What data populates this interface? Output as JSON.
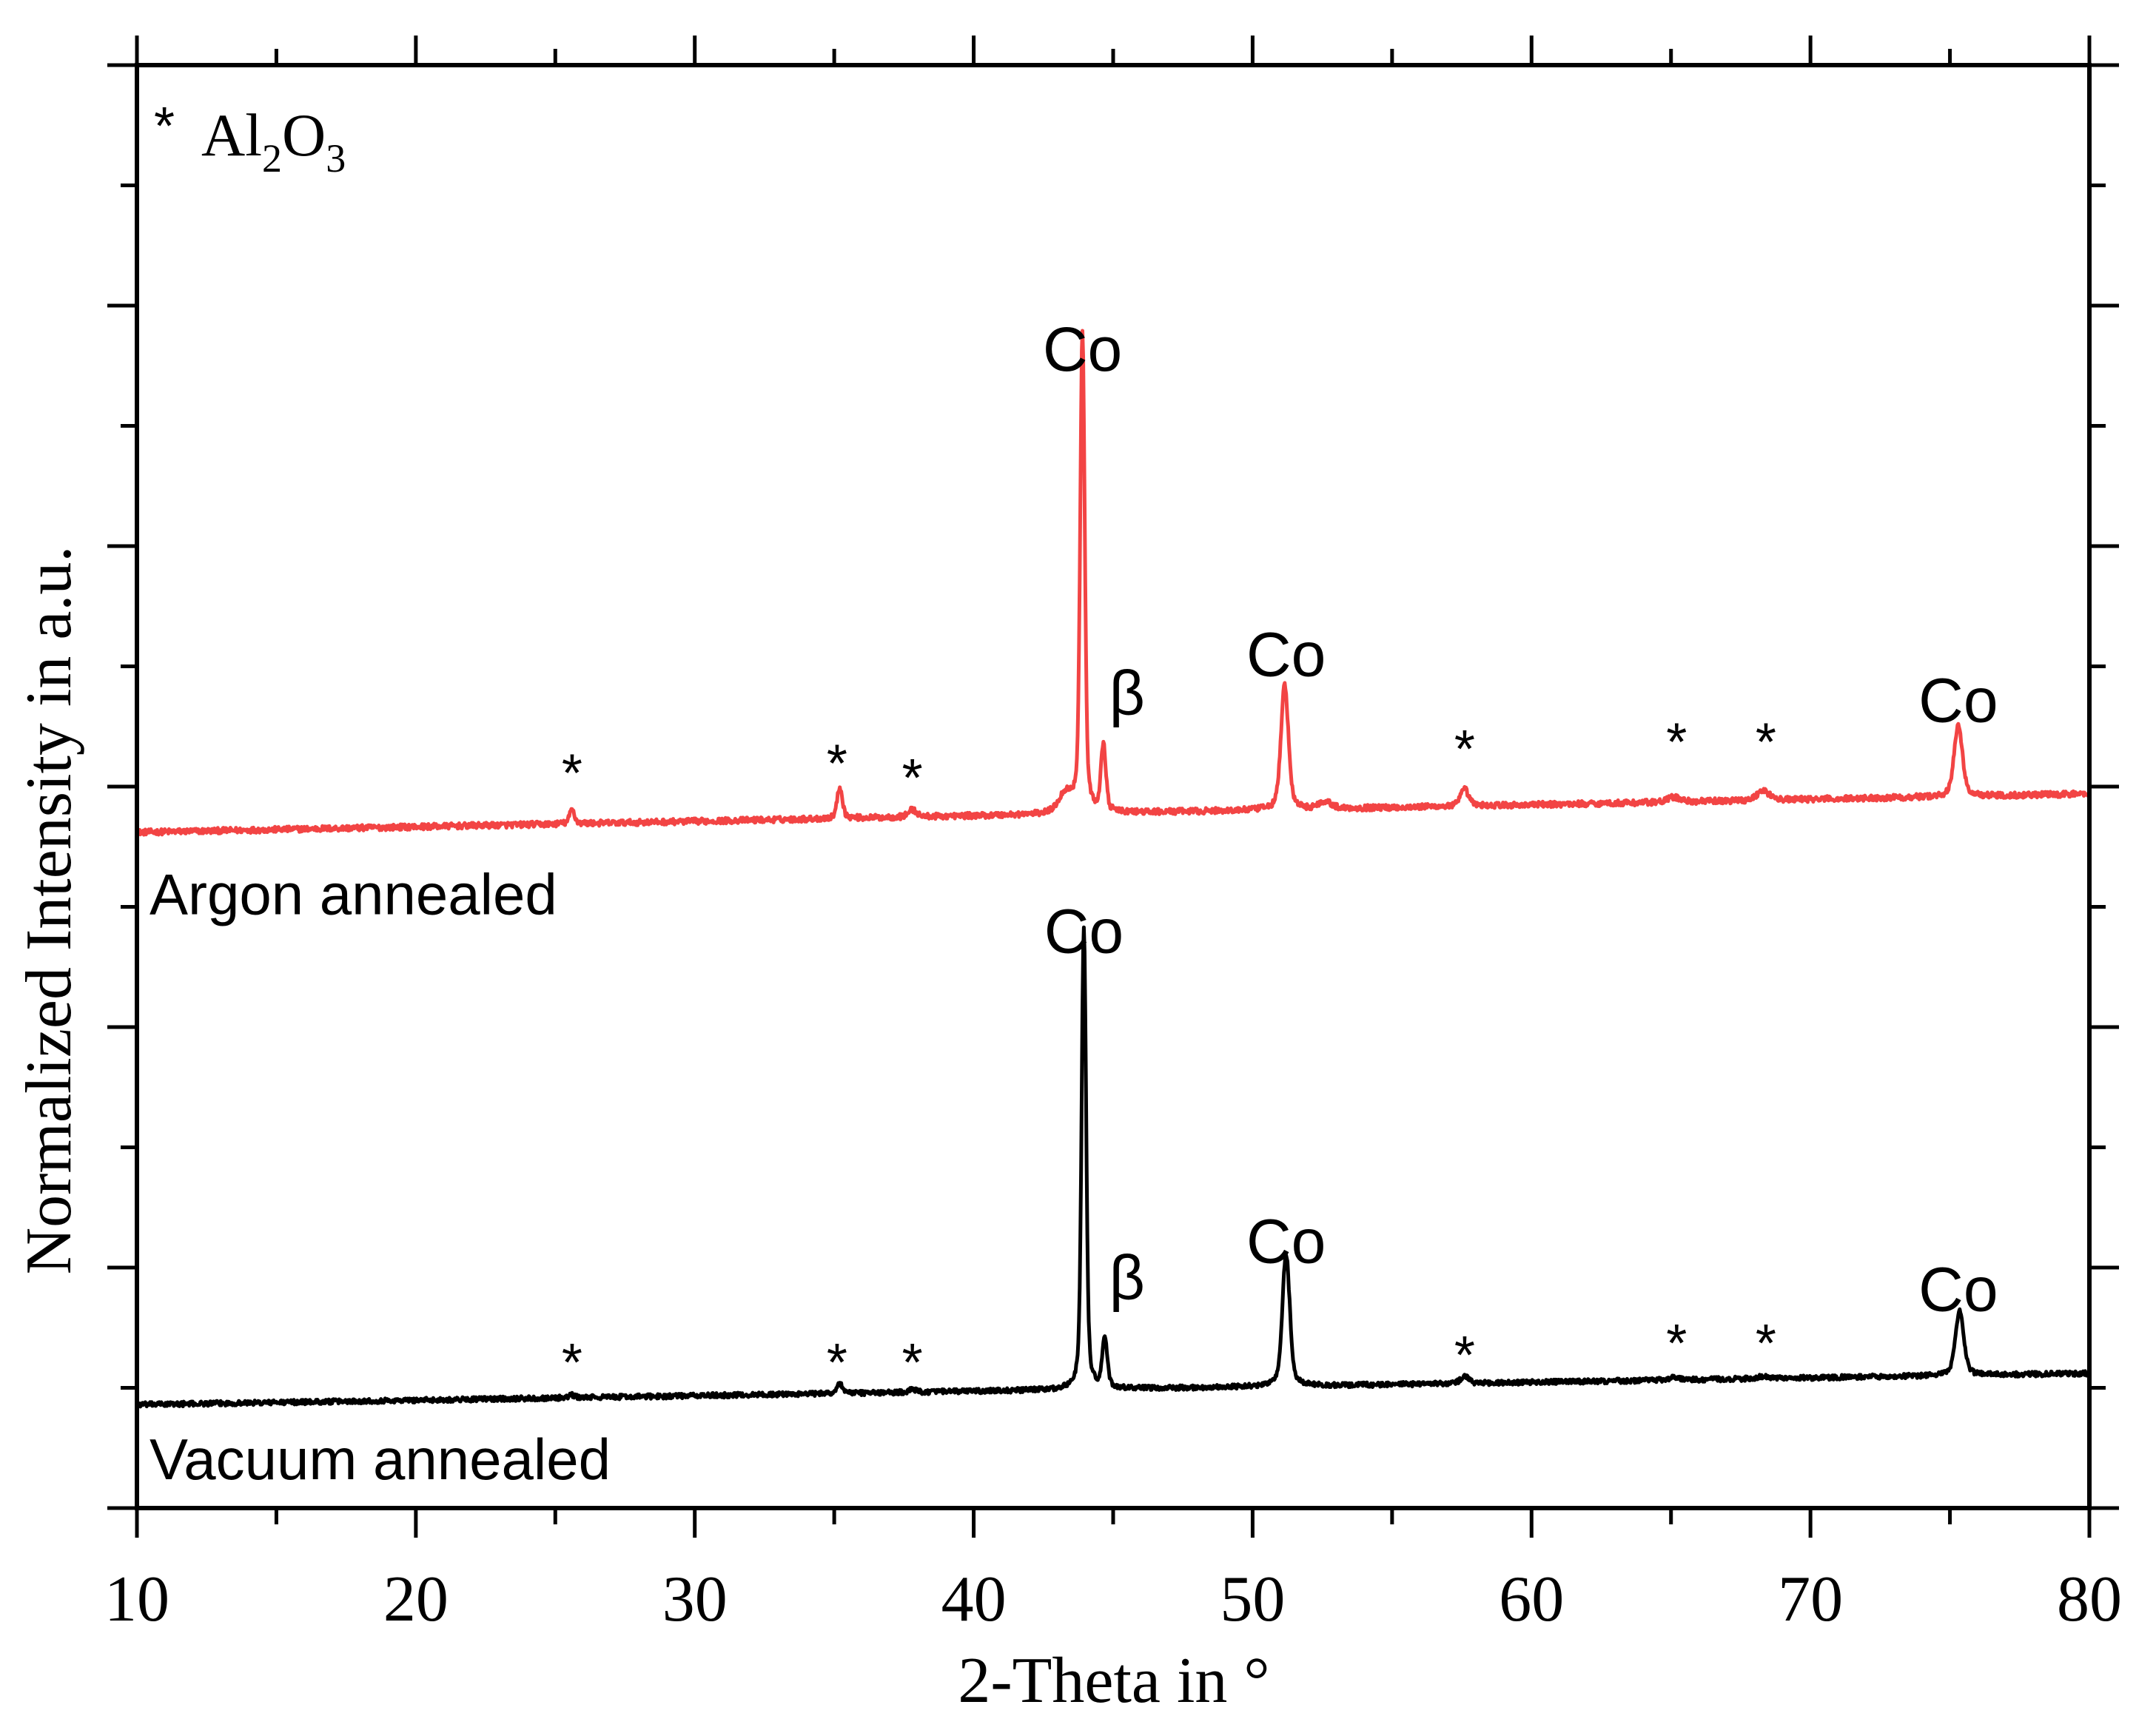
{
  "chart_data": {
    "type": "line",
    "xlabel": "2-Theta in °",
    "ylabel": "Normalized Intensity in a.u.",
    "xlim": [
      10,
      80
    ],
    "ylim": [
      0,
      6
    ],
    "x_ticks": [
      "10",
      "20",
      "30",
      "40",
      "50",
      "60",
      "70",
      "80"
    ],
    "grid": false,
    "legend": {
      "marker": "*",
      "base": "Al",
      "sub1": "2",
      "mid": "O",
      "sub2": "3"
    },
    "series": [
      {
        "name": "Argon annealed",
        "color": "#f24444",
        "baseline_start": 2.81,
        "baseline_end": 2.97,
        "noise": 0.012,
        "peaks": [
          {
            "x": 25.6,
            "h": 0.06,
            "w": 0.12
          },
          {
            "x": 35.2,
            "h": 0.13,
            "w": 0.13
          },
          {
            "x": 37.8,
            "h": 0.03,
            "w": 0.2
          },
          {
            "x": 43.3,
            "h": 0.08,
            "w": 0.35
          },
          {
            "x": 43.9,
            "h": 2.0,
            "w": 0.11
          },
          {
            "x": 44.65,
            "h": 0.28,
            "w": 0.12
          },
          {
            "x": 51.15,
            "h": 0.52,
            "w": 0.18
          },
          {
            "x": 52.6,
            "h": 0.03,
            "w": 0.3
          },
          {
            "x": 57.6,
            "h": 0.07,
            "w": 0.2
          },
          {
            "x": 65.1,
            "h": 0.02,
            "w": 0.3
          },
          {
            "x": 68.3,
            "h": 0.04,
            "w": 0.3
          },
          {
            "x": 75.3,
            "h": 0.3,
            "w": 0.2
          }
        ]
      },
      {
        "name": "Vacuum annealed",
        "color": "#000000",
        "baseline_start": 0.43,
        "baseline_end": 0.56,
        "noise": 0.01,
        "peaks": [
          {
            "x": 25.6,
            "h": 0.01,
            "w": 0.15
          },
          {
            "x": 35.2,
            "h": 0.04,
            "w": 0.15
          },
          {
            "x": 37.8,
            "h": 0.01,
            "w": 0.2
          },
          {
            "x": 43.95,
            "h": 1.92,
            "w": 0.11
          },
          {
            "x": 44.7,
            "h": 0.21,
            "w": 0.12
          },
          {
            "x": 51.2,
            "h": 0.55,
            "w": 0.18
          },
          {
            "x": 57.6,
            "h": 0.03,
            "w": 0.2
          },
          {
            "x": 65.1,
            "h": 0.01,
            "w": 0.3
          },
          {
            "x": 68.3,
            "h": 0.01,
            "w": 0.3
          },
          {
            "x": 75.35,
            "h": 0.27,
            "w": 0.2
          }
        ]
      }
    ],
    "annotations": [
      {
        "text": "Co",
        "x": 43.9,
        "y": 4.73,
        "kind": "phase"
      },
      {
        "text": "β",
        "x": 45.5,
        "y": 3.3,
        "kind": "phase"
      },
      {
        "text": "Co",
        "x": 51.2,
        "y": 3.46,
        "kind": "phase"
      },
      {
        "text": "Co",
        "x": 75.3,
        "y": 3.27,
        "kind": "phase"
      },
      {
        "text": "*",
        "x": 25.6,
        "y": 2.98,
        "kind": "star"
      },
      {
        "text": "*",
        "x": 35.1,
        "y": 3.02,
        "kind": "star"
      },
      {
        "text": "*",
        "x": 37.8,
        "y": 2.96,
        "kind": "star"
      },
      {
        "text": "*",
        "x": 57.6,
        "y": 3.08,
        "kind": "star"
      },
      {
        "text": "*",
        "x": 65.2,
        "y": 3.11,
        "kind": "star"
      },
      {
        "text": "*",
        "x": 68.4,
        "y": 3.11,
        "kind": "star"
      },
      {
        "text": "Argon annealed",
        "x": 10.45,
        "y": 2.47,
        "kind": "series-label"
      },
      {
        "text": "Co",
        "x": 43.95,
        "y": 2.31,
        "kind": "phase"
      },
      {
        "text": "β",
        "x": 45.5,
        "y": 0.87,
        "kind": "phase"
      },
      {
        "text": "Co",
        "x": 51.2,
        "y": 1.02,
        "kind": "phase"
      },
      {
        "text": "Co",
        "x": 75.3,
        "y": 0.82,
        "kind": "phase"
      },
      {
        "text": "*",
        "x": 25.6,
        "y": 0.53,
        "kind": "star"
      },
      {
        "text": "*",
        "x": 35.1,
        "y": 0.53,
        "kind": "star"
      },
      {
        "text": "*",
        "x": 37.8,
        "y": 0.53,
        "kind": "star"
      },
      {
        "text": "*",
        "x": 57.6,
        "y": 0.56,
        "kind": "star"
      },
      {
        "text": "*",
        "x": 65.2,
        "y": 0.61,
        "kind": "star"
      },
      {
        "text": "*",
        "x": 68.4,
        "y": 0.61,
        "kind": "star"
      },
      {
        "text": "Vacuum annealed",
        "x": 10.45,
        "y": 0.12,
        "kind": "series-label"
      }
    ]
  }
}
